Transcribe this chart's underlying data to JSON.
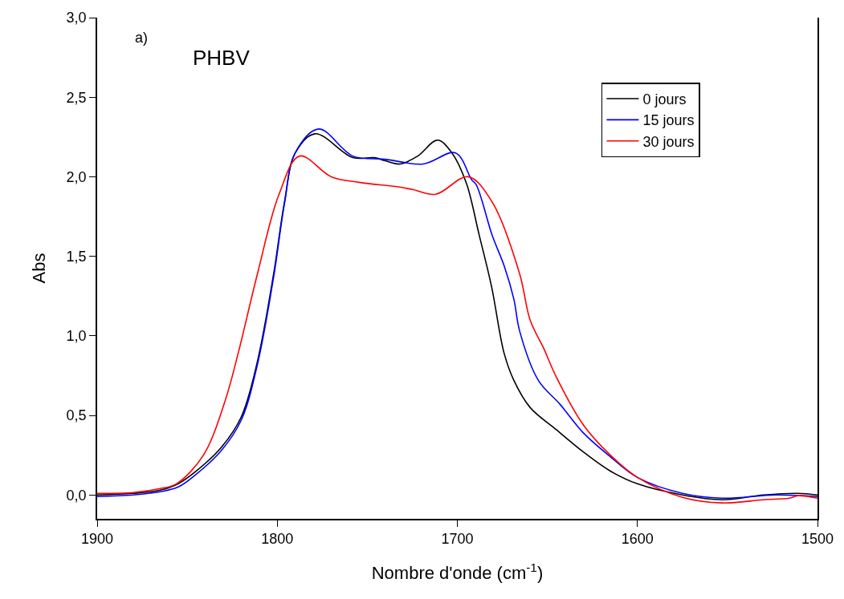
{
  "chart_data": {
    "type": "line",
    "xlabel": "Nombre d'onde (cm$^{-1}$)",
    "ylabel": "Abs",
    "annotations": [
      "a)",
      "PHBV"
    ],
    "xlim": [
      1900,
      1500
    ],
    "xticks": [
      1900,
      1800,
      1700,
      1600,
      1500
    ],
    "ylim": [
      -0.15,
      3.0
    ],
    "yticks": [
      {
        "value": 0,
        "label": "0,0"
      },
      {
        "value": 0.5,
        "label": "0,5"
      },
      {
        "value": 1,
        "label": "1,0"
      },
      {
        "value": 1.5,
        "label": "1,5"
      },
      {
        "value": 2,
        "label": "2,0"
      },
      {
        "value": 2.5,
        "label": "2,5"
      },
      {
        "value": 3,
        "label": "3,0"
      }
    ],
    "legend": "top right",
    "marker": "none",
    "line_style": "solid",
    "series": [
      {
        "name": "0 jours",
        "color": "#000000",
        "x": [
          1900,
          1880,
          1865,
          1855,
          1845,
          1831,
          1820,
          1811,
          1802,
          1796,
          1790,
          1779,
          1758,
          1746,
          1740,
          1732,
          1722,
          1711,
          1703,
          1695,
          1688,
          1681,
          1674,
          1668.6,
          1659.6,
          1645,
          1630,
          1615,
          1600,
          1575,
          1553,
          1530,
          1511,
          1500
        ],
        "values": [
          0.0,
          0.01,
          0.03,
          0.07,
          0.15,
          0.3,
          0.49,
          0.84,
          1.39,
          1.84,
          2.15,
          2.27,
          2.12,
          2.12,
          2.1,
          2.08,
          2.13,
          2.23,
          2.15,
          1.96,
          1.64,
          1.31,
          0.89,
          0.72,
          0.55,
          0.41,
          0.27,
          0.15,
          0.07,
          0.0,
          -0.03,
          0.0,
          0.01,
          0.0
        ]
      },
      {
        "name": "15 jours",
        "color": "#0000ff",
        "x": [
          1900,
          1880,
          1865,
          1855,
          1845,
          1831,
          1820,
          1811,
          1802,
          1796,
          1790,
          1777,
          1758,
          1740,
          1719,
          1701,
          1692,
          1689.5,
          1680.6,
          1674,
          1668.6,
          1665.4,
          1655,
          1643,
          1630,
          1615,
          1600,
          1575,
          1553,
          1523,
          1500
        ],
        "values": [
          -0.01,
          0.0,
          0.02,
          0.05,
          0.13,
          0.28,
          0.47,
          0.82,
          1.37,
          1.83,
          2.15,
          2.3,
          2.13,
          2.11,
          2.08,
          2.15,
          1.98,
          1.95,
          1.63,
          1.44,
          1.23,
          1.03,
          0.72,
          0.57,
          0.39,
          0.24,
          0.11,
          0.01,
          -0.02,
          0.0,
          -0.01
        ]
      },
      {
        "name": "30 jours",
        "color": "#ff0000",
        "x": [
          1900,
          1880,
          1865,
          1856,
          1841,
          1829,
          1821.5,
          1811,
          1799,
          1787.6,
          1770,
          1754.6,
          1732,
          1725,
          1712,
          1694,
          1680.6,
          1665.4,
          1659.6,
          1652,
          1645,
          1630,
          1615,
          1600,
          1575,
          1553,
          1530,
          1515.6,
          1511,
          1500
        ],
        "values": [
          0.01,
          0.015,
          0.04,
          0.07,
          0.25,
          0.59,
          0.9,
          1.39,
          1.89,
          2.13,
          2.0,
          1.965,
          1.935,
          1.92,
          1.89,
          2.0,
          1.84,
          1.39,
          1.1,
          0.92,
          0.74,
          0.44,
          0.25,
          0.11,
          -0.015,
          -0.05,
          -0.03,
          -0.02,
          -0.005,
          -0.02
        ]
      }
    ]
  }
}
